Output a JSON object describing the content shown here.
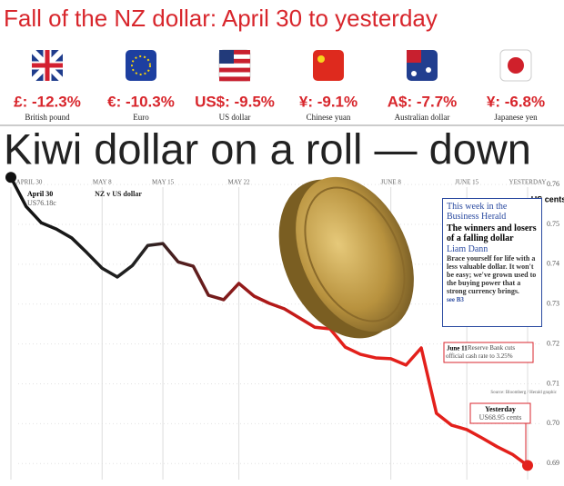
{
  "header": {
    "title": "Fall of the NZ dollar: April 30 to yesterday"
  },
  "currencies": [
    {
      "change": "£: -12.3%",
      "name": "British pound"
    },
    {
      "change": "€: -10.3%",
      "name": "Euro"
    },
    {
      "change": "US$: -9.5%",
      "name": "US dollar"
    },
    {
      "change": "¥: -9.1%",
      "name": "Chinese yuan"
    },
    {
      "change": "A$: -7.7%",
      "name": "Australian dollar"
    },
    {
      "change": "¥: -6.8%",
      "name": "Japanese yen"
    }
  ],
  "chart_data": {
    "type": "line",
    "title": "Kiwi dollar on a roll — down",
    "y_label": "US cents",
    "categories": [
      "APRIL 30",
      null,
      null,
      null,
      null,
      null,
      "MAY 8",
      null,
      null,
      null,
      "MAY 15",
      null,
      null,
      null,
      null,
      "MAY 22",
      null,
      null,
      null,
      null,
      null,
      null,
      null,
      null,
      null,
      "JUNE 8",
      null,
      null,
      null,
      null,
      "JUNE 15",
      null,
      null,
      null,
      "YESTERDAY"
    ],
    "series": [
      {
        "name": "NZ v US dollar",
        "color": "#e3201b",
        "values": [
          0.7618,
          0.7545,
          0.7504,
          0.7488,
          0.7466,
          0.7429,
          0.739,
          0.7368,
          0.7397,
          0.7447,
          0.7452,
          0.7406,
          0.7395,
          0.7322,
          0.7311,
          0.7352,
          0.732,
          0.7302,
          0.7288,
          0.7265,
          0.7242,
          0.7238,
          0.7192,
          0.7174,
          0.7165,
          0.7163,
          0.7147,
          0.719,
          0.7026,
          0.6996,
          0.6985,
          0.6964,
          0.6942,
          0.6923,
          0.6895
        ]
      }
    ],
    "ylim": [
      0.688,
      0.763
    ],
    "yticks": [
      0.76,
      0.75,
      0.74,
      0.73,
      0.72,
      0.71,
      {
        "value": 0.7,
        "label": "0.70"
      },
      0.69
    ],
    "grid": true,
    "annotations": [
      {
        "title": "April 30",
        "text": "US76.18c"
      },
      {
        "title": "June 11",
        "text": "Reserve Bank cuts official cash rate to 3.25%"
      },
      {
        "title": "Yesterday",
        "text": "US68.95 cents"
      }
    ],
    "source": "Source: Bloomberg / Herald graphic"
  },
  "sidebar": {
    "kicker": "This week in the Business Herald",
    "headline": "The winners and losers of a falling dollar",
    "author": "Liam Dann",
    "body": "Brace yourself for life with a less valuable dollar. It won't be easy; we've grown used to the buying power that a strong currency brings.",
    "ref": "see B3"
  }
}
